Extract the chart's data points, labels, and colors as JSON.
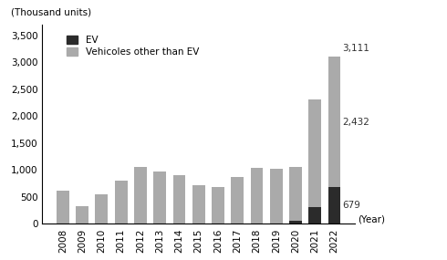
{
  "years": [
    "2008",
    "2009",
    "2010",
    "2011",
    "2012",
    "2013",
    "2014",
    "2015",
    "2016",
    "2017",
    "2018",
    "2019",
    "2020",
    "2021",
    "2022"
  ],
  "ev": [
    0,
    0,
    0,
    0,
    0,
    0,
    0,
    0,
    0,
    0,
    0,
    0,
    50,
    310,
    679
  ],
  "other": [
    620,
    330,
    545,
    800,
    1050,
    970,
    910,
    720,
    690,
    870,
    1040,
    1020,
    1000,
    2000,
    2432
  ],
  "total_2022": 3111,
  "ev_color": "#2b2b2b",
  "other_color": "#aaaaaa",
  "ylabel": "(Thousand units)",
  "xlabel": "(Year)",
  "ylim": [
    0,
    3700
  ],
  "yticks": [
    0,
    500,
    1000,
    1500,
    2000,
    2500,
    3000,
    3500
  ],
  "ytick_labels": [
    "0",
    "500",
    "1,000",
    "1,500",
    "2,000",
    "2,500",
    "3,000",
    "3,500"
  ],
  "legend_ev": "EV",
  "legend_other": "Vehicoles other than EV",
  "annotation_total": "3,111",
  "annotation_other": "2,432",
  "annotation_ev": "679",
  "background_color": "#ffffff"
}
